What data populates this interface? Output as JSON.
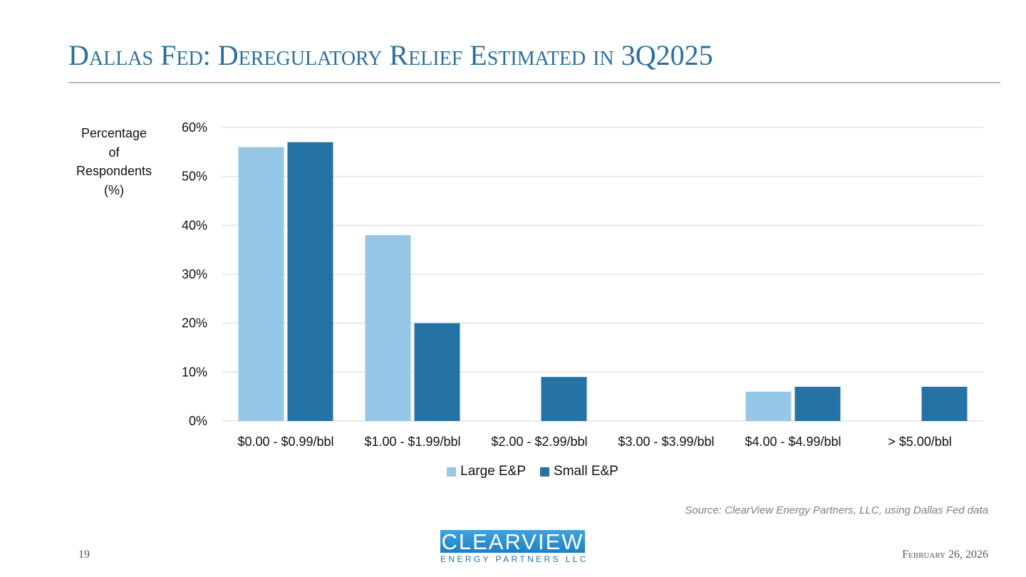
{
  "slide": {
    "title": "Dallas Fed: Deregulatory Relief Estimated in 3Q2025",
    "page_number": "19",
    "date": "February 26, 2026",
    "source": "Source: ClearView Energy Partners, LLC, using Dallas Fed data",
    "logo": {
      "line1": "CLEARVIEW",
      "line2": "ENERGY PARTNERS LLC"
    }
  },
  "chart_data": {
    "type": "bar",
    "title": "",
    "ylabel_lines": [
      "Percentage",
      "of",
      "Respondents",
      "(%)"
    ],
    "xlabel": "",
    "categories": [
      "$0.00 - $0.99/bbl",
      "$1.00 - $1.99/bbl",
      "$2.00 - $2.99/bbl",
      "$3.00 - $3.99/bbl",
      "$4.00 - $4.99/bbl",
      "> $5.00/bbl"
    ],
    "series": [
      {
        "name": "Large E&P",
        "color": "#97c7e6",
        "values": [
          56,
          38,
          0,
          0,
          6,
          0
        ]
      },
      {
        "name": "Small E&P",
        "color": "#2572a4",
        "values": [
          57,
          20,
          9,
          0,
          7,
          7
        ]
      }
    ],
    "ylim": [
      0,
      60
    ],
    "yticks": [
      0,
      10,
      20,
      30,
      40,
      50,
      60
    ],
    "ytick_labels": [
      "0%",
      "10%",
      "20%",
      "30%",
      "40%",
      "50%",
      "60%"
    ],
    "grid": true,
    "legend_position": "bottom"
  }
}
